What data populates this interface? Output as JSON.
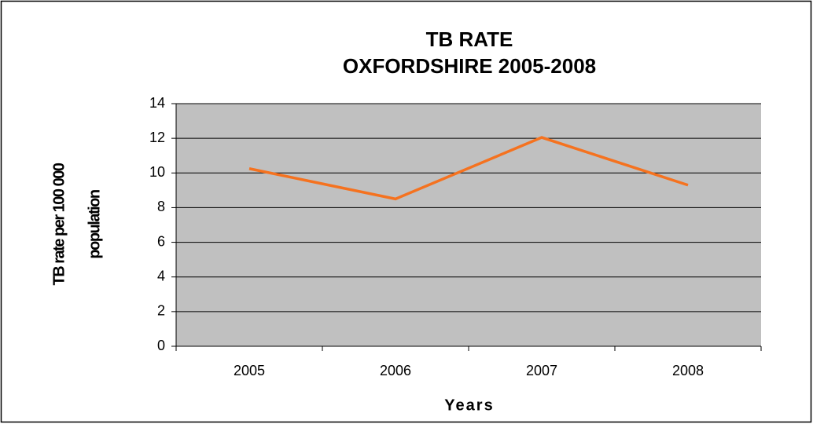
{
  "chart_data": {
    "type": "line",
    "title": [
      "TB RATE",
      "OXFORDSHIRE 2005-2008"
    ],
    "x_label": "Years",
    "y_label": [
      "TB rate per 100 000",
      "population"
    ],
    "categories": [
      "2005",
      "2006",
      "2007",
      "2008"
    ],
    "series": [
      {
        "name": "TB rate",
        "color": "#f5721f",
        "values": [
          10.25,
          8.5,
          12.05,
          9.3
        ]
      }
    ],
    "ylim": [
      0,
      14
    ],
    "yticks": [
      0,
      2,
      4,
      6,
      8,
      10,
      12,
      14
    ],
    "grid": true,
    "plot_background": "#c0c0c0",
    "legend": false
  }
}
